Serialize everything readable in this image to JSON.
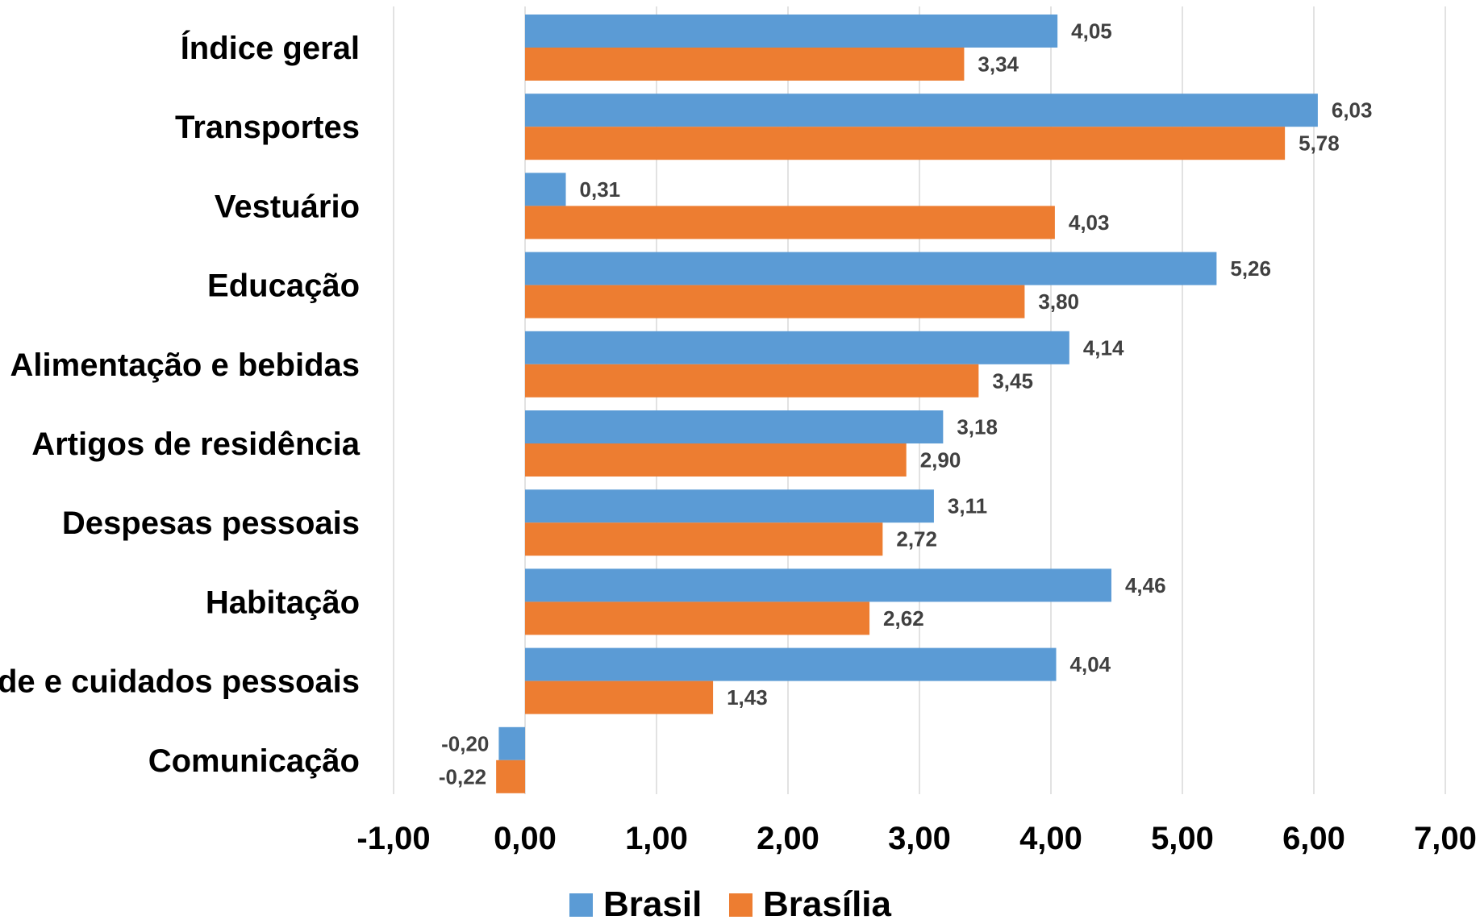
{
  "chart_data": {
    "type": "bar",
    "orientation": "horizontal",
    "title": "",
    "xlabel": "",
    "ylabel": "",
    "categories": [
      "Índice geral",
      "Transportes",
      "Vestuário",
      "Educação",
      "Alimentação e bebidas",
      "Artigos de residência",
      "Despesas pessoais",
      "Habitação",
      "Saúde e cuidados pessoais",
      "Comunicação"
    ],
    "series": [
      {
        "name": "Brasil",
        "color": "#5B9BD5",
        "values": [
          4.05,
          6.03,
          0.31,
          5.26,
          4.14,
          3.18,
          3.11,
          4.46,
          4.04,
          -0.2
        ],
        "labels": [
          "4,05",
          "6,03",
          "0,31",
          "5,26",
          "4,14",
          "3,18",
          "3,11",
          "4,46",
          "4,04",
          "-0,20"
        ]
      },
      {
        "name": "Brasília",
        "color": "#ED7D31",
        "values": [
          3.34,
          5.78,
          4.03,
          3.8,
          3.45,
          2.9,
          2.72,
          2.62,
          1.43,
          -0.22
        ],
        "labels": [
          "3,34",
          "5,78",
          "4,03",
          "3,80",
          "3,45",
          "2,90",
          "2,72",
          "2,62",
          "1,43",
          "-0,22"
        ]
      }
    ],
    "xlim": [
      -1,
      7
    ],
    "ticks": [
      -1,
      0,
      1,
      2,
      3,
      4,
      5,
      6,
      7
    ],
    "tick_labels": [
      "-1,00",
      "0,00",
      "1,00",
      "2,00",
      "3,00",
      "4,00",
      "5,00",
      "6,00",
      "7,00"
    ],
    "grid": true,
    "gridline_color": "#d9d9d9",
    "legend_position": "bottom"
  }
}
